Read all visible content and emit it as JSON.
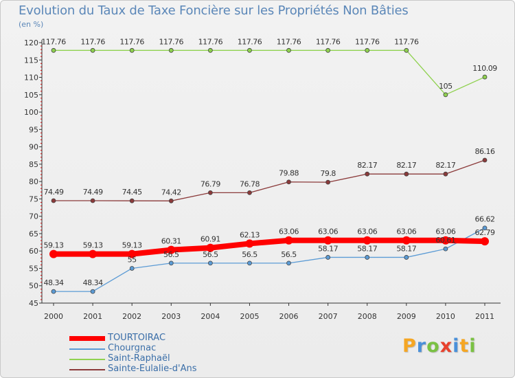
{
  "chart_data": {
    "type": "line",
    "title": "Evolution du Taux de Taxe Foncière sur les Propriétés Non Bâties",
    "unit_label": "(en %)",
    "x": [
      "2000",
      "2001",
      "2002",
      "2003",
      "2004",
      "2005",
      "2006",
      "2007",
      "2008",
      "2009",
      "2010",
      "2011"
    ],
    "ylim": [
      45,
      120
    ],
    "yticks": [
      45,
      50,
      55,
      60,
      65,
      70,
      75,
      80,
      85,
      90,
      95,
      100,
      105,
      110,
      115,
      120
    ],
    "grid": false,
    "series": [
      {
        "name": "TOURTOIRAC",
        "color": "#ff0000",
        "values": [
          59.13,
          59.13,
          59.13,
          60.31,
          60.91,
          62.13,
          63.06,
          63.06,
          63.06,
          63.06,
          63.06,
          62.79
        ],
        "labels": [
          "59.13",
          "59.13",
          "59.13",
          "60.31",
          "60.91",
          "62.13",
          "63.06",
          "63.06",
          "63.06",
          "63.06",
          "63.06",
          "62.79"
        ]
      },
      {
        "name": "Chourgnac",
        "color": "#5b9bd5",
        "values": [
          48.34,
          48.34,
          55,
          56.5,
          56.5,
          56.5,
          56.5,
          58.17,
          58.17,
          58.17,
          60.61,
          66.62
        ],
        "labels": [
          "48.34",
          "48.34",
          "55",
          "56.5",
          "56.5",
          "56.5",
          "56.5",
          "58.17",
          "58.17",
          "58.17",
          "60.61",
          "66.62"
        ]
      },
      {
        "name": "Saint-Raphaël",
        "color": "#8fd14f",
        "values": [
          117.76,
          117.76,
          117.76,
          117.76,
          117.76,
          117.76,
          117.76,
          117.76,
          117.76,
          117.76,
          105,
          110.09
        ],
        "labels": [
          "117.76",
          "117.76",
          "117.76",
          "117.76",
          "117.76",
          "117.76",
          "117.76",
          "117.76",
          "117.76",
          "117.76",
          "105",
          "110.09"
        ]
      },
      {
        "name": "Sainte-Eulalie-d'Ans",
        "color": "#8b3a3a",
        "values": [
          74.49,
          74.49,
          74.45,
          74.42,
          76.79,
          76.78,
          79.88,
          79.8,
          82.17,
          82.17,
          82.17,
          86.16
        ],
        "labels": [
          "74.49",
          "74.49",
          "74.45",
          "74.42",
          "76.79",
          "76.78",
          "79.88",
          "79.8",
          "82.17",
          "82.17",
          "82.17",
          "86.16"
        ]
      }
    ],
    "legend_position": "bottom-left"
  },
  "logo": {
    "letters": [
      "P",
      "r",
      "o",
      "x",
      "i",
      "t",
      "i"
    ],
    "colors": [
      "#f5a623",
      "#4a90d9",
      "#7ac143",
      "#e8412c",
      "#4a90d9",
      "#f5a623",
      "#7ac143"
    ]
  }
}
